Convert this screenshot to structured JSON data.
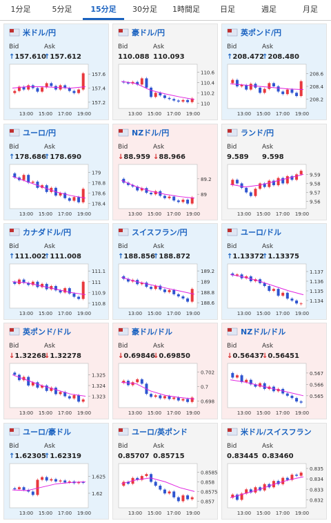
{
  "tabs": [
    "1分足",
    "5分足",
    "15分足",
    "30分足",
    "1時間足",
    "日足",
    "週足",
    "月足"
  ],
  "active_tab": 2,
  "labels": {
    "bid": "Bid",
    "ask": "Ask"
  },
  "arrows": {
    "up": "↑",
    "down": "↓"
  },
  "time_labels": [
    "13:00",
    "15:00",
    "17:00",
    "19:00"
  ],
  "colors": {
    "up_card": "#e6f2fb",
    "down_card": "#fcecec",
    "flat_card": "#f4f4f4",
    "rise": "#e8383d",
    "fall": "#2f55d0",
    "ma": "#e020e0",
    "arrow_up": "#1a62c0",
    "arrow_down": "#d42a2a"
  },
  "cards": [
    {
      "name": "米ドル/円",
      "bid": "157.610",
      "ask": "157.612",
      "trend": "up",
      "chart": {
        "ylim": [
          157.15,
          157.7
        ],
        "yticks": [
          157.2,
          157.4,
          157.6
        ],
        "values": [
          157.33,
          157.36,
          157.42,
          157.38,
          157.44,
          157.4,
          157.35,
          157.41,
          157.47,
          157.43,
          157.38,
          157.44,
          157.4,
          157.36,
          157.33,
          157.38,
          157.61
        ],
        "ma": [
          157.4,
          157.42,
          157.42,
          157.41,
          157.4,
          157.42
        ]
      }
    },
    {
      "name": "豪ドル/円",
      "bid": "110.088",
      "ask": "110.093",
      "trend": "flat",
      "chart": {
        "ylim": [
          109.95,
          110.7
        ],
        "yticks": [
          110,
          110.2,
          110.4,
          110.6
        ],
        "values": [
          110.42,
          110.4,
          110.38,
          110.41,
          110.36,
          110.48,
          110.3,
          110.12,
          110.2,
          110.15,
          110.1,
          110.08,
          110.05,
          110.03,
          110.06,
          110.02,
          110.09
        ],
        "ma": [
          110.42,
          110.38,
          110.25,
          110.18,
          110.12,
          110.07
        ]
      }
    },
    {
      "name": "英ポンド/円",
      "bid": "208.472",
      "ask": "208.480",
      "trend": "up",
      "chart": {
        "ylim": [
          208.1,
          208.7
        ],
        "yticks": [
          208.2,
          208.4,
          208.6
        ],
        "values": [
          208.45,
          208.5,
          208.4,
          208.42,
          208.35,
          208.44,
          208.38,
          208.3,
          208.36,
          208.45,
          208.4,
          208.32,
          208.28,
          208.35,
          208.3,
          208.25,
          208.48
        ],
        "ma": [
          208.44,
          208.42,
          208.4,
          208.38,
          208.36,
          208.35
        ]
      }
    },
    {
      "name": "ユーロ/円",
      "bid": "178.686",
      "ask": "178.690",
      "trend": "up",
      "chart": {
        "ylim": [
          178.35,
          179.1
        ],
        "yticks": [
          178.4,
          178.6,
          178.8,
          179
        ],
        "values": [
          178.98,
          178.9,
          178.85,
          178.95,
          178.8,
          178.82,
          178.7,
          178.75,
          178.62,
          178.7,
          178.55,
          178.6,
          178.5,
          178.45,
          178.52,
          178.42,
          178.68
        ],
        "ma": [
          178.92,
          178.82,
          178.72,
          178.62,
          178.55,
          178.5
        ]
      }
    },
    {
      "name": "NZドル/円",
      "bid": "88.959",
      "ask": "88.966",
      "trend": "down",
      "chart": {
        "ylim": [
          88.85,
          89.35
        ],
        "yticks": [
          89,
          89.2
        ],
        "values": [
          89.2,
          89.15,
          89.12,
          89.1,
          89.05,
          89.08,
          89.02,
          89.0,
          89.04,
          88.98,
          88.95,
          88.97,
          88.92,
          88.9,
          88.93,
          88.88,
          88.96
        ],
        "ma": [
          89.18,
          89.1,
          89.04,
          89.0,
          88.97,
          88.95
        ]
      }
    },
    {
      "name": "ランド/円",
      "bid": "9.589",
      "ask": "9.598",
      "trend": "flat",
      "chart": {
        "ylim": [
          9.555,
          9.598
        ],
        "yticks": [
          9.56,
          9.57,
          9.58,
          9.59
        ],
        "values": [
          9.578,
          9.584,
          9.58,
          9.575,
          9.57,
          9.566,
          9.574,
          9.58,
          9.576,
          9.583,
          9.578,
          9.586,
          9.58,
          9.588,
          9.584,
          9.59,
          9.594
        ],
        "ma": [
          9.579,
          9.576,
          9.578,
          9.582,
          9.586,
          9.59
        ]
      }
    },
    {
      "name": "カナダドル/円",
      "bid": "111.002",
      "ask": "111.008",
      "trend": "up",
      "chart": {
        "ylim": [
          110.78,
          111.14
        ],
        "yticks": [
          110.8,
          110.9,
          111,
          111.1
        ],
        "values": [
          111.0,
          110.98,
          111.02,
          110.99,
          110.97,
          111.0,
          110.95,
          110.98,
          110.93,
          110.96,
          110.92,
          110.9,
          110.94,
          110.89,
          110.86,
          110.84,
          111.0
        ],
        "ma": [
          111.0,
          110.99,
          110.96,
          110.93,
          110.9,
          110.88
        ]
      }
    },
    {
      "name": "スイスフラン/円",
      "bid": "188.856",
      "ask": "188.872",
      "trend": "up",
      "chart": {
        "ylim": [
          188.55,
          189.28
        ],
        "yticks": [
          188.6,
          188.8,
          189,
          189.2
        ],
        "values": [
          189.1,
          189.05,
          189.0,
          189.03,
          188.95,
          188.98,
          188.9,
          188.86,
          188.92,
          188.85,
          188.8,
          188.84,
          188.76,
          188.72,
          188.68,
          188.62,
          188.86
        ],
        "ma": [
          189.08,
          189.0,
          188.94,
          188.88,
          188.82,
          188.76
        ]
      }
    },
    {
      "name": "ユーロ/ドル",
      "bid": "1.13372",
      "ask": "1.13375",
      "trend": "up",
      "chart": {
        "ylim": [
          1.1335,
          1.1375
        ],
        "yticks": [
          1.134,
          1.135,
          1.136,
          1.137
        ],
        "values": [
          1.1368,
          1.1366,
          1.1367,
          1.1363,
          1.1365,
          1.136,
          1.1362,
          1.1358,
          1.1355,
          1.135,
          1.1352,
          1.1345,
          1.1348,
          1.1342,
          1.134,
          1.1337,
          1.1337
        ],
        "ma": [
          1.1367,
          1.1364,
          1.136,
          1.1355,
          1.135,
          1.1346
        ]
      }
    },
    {
      "name": "英ポンド/ドル",
      "bid": "1.32268",
      "ask": "1.32278",
      "trend": "down",
      "chart": {
        "ylim": [
          1.3222,
          1.3258
        ],
        "yticks": [
          1.323,
          1.324,
          1.325
        ],
        "values": [
          1.3252,
          1.325,
          1.3245,
          1.3248,
          1.324,
          1.3243,
          1.3238,
          1.324,
          1.3235,
          1.3238,
          1.3232,
          1.3234,
          1.323,
          1.3228,
          1.3231,
          1.3225,
          1.3227
        ],
        "ma": [
          1.325,
          1.3245,
          1.324,
          1.3236,
          1.3232,
          1.323
        ]
      }
    },
    {
      "name": "豪ドル/ドル",
      "bid": "0.69846",
      "ask": "0.69850",
      "trend": "down",
      "chart": {
        "ylim": [
          0.6975,
          0.7028
        ],
        "yticks": [
          0.698,
          0.7,
          0.702
        ],
        "values": [
          0.7005,
          0.7008,
          0.7002,
          0.7006,
          0.701,
          0.7004,
          0.699,
          0.6986,
          0.6988,
          0.6984,
          0.6987,
          0.6983,
          0.6985,
          0.6981,
          0.6983,
          0.6979,
          0.6985
        ],
        "ma": [
          0.7006,
          0.7004,
          0.6994,
          0.6988,
          0.6985,
          0.6983
        ]
      }
    },
    {
      "name": "NZドル/ドル",
      "bid": "0.56437",
      "ask": "0.56451",
      "trend": "down",
      "chart": {
        "ylim": [
          0.5642,
          0.5676
        ],
        "yticks": [
          0.565,
          0.566,
          0.567
        ],
        "values": [
          0.567,
          0.5666,
          0.5668,
          0.5662,
          0.5664,
          0.566,
          0.5658,
          0.5661,
          0.5656,
          0.5658,
          0.5654,
          0.5656,
          0.5652,
          0.565,
          0.5648,
          0.5645,
          0.5644
        ],
        "ma": [
          0.5664,
          0.5662,
          0.5659,
          0.5656,
          0.5653,
          0.565
        ]
      }
    },
    {
      "name": "ユーロ/豪ドル",
      "bid": "1.62305",
      "ask": "1.62319",
      "trend": "up",
      "chart": {
        "ylim": [
          1.6165,
          1.628
        ],
        "yticks": [
          1.62,
          1.625
        ],
        "values": [
          1.6215,
          1.6212,
          1.6218,
          1.621,
          1.6205,
          1.6195,
          1.624,
          1.6248,
          1.6238,
          1.6242,
          1.6235,
          1.6238,
          1.6232,
          1.6235,
          1.623,
          1.6233,
          1.6231
        ],
        "ma": [
          1.621,
          1.6208,
          1.6218,
          1.6228,
          1.6232,
          1.6234
        ]
      }
    },
    {
      "name": "ユーロ/英ポンド",
      "bid": "0.85707",
      "ask": "0.85715",
      "trend": "flat",
      "chart": {
        "ylim": [
          0.8568,
          0.8588
        ],
        "yticks": [
          0.857,
          0.8575,
          0.858,
          0.8585
        ],
        "values": [
          0.8578,
          0.858,
          0.8579,
          0.8582,
          0.8581,
          0.8583,
          0.8584,
          0.858,
          0.8578,
          0.8576,
          0.8574,
          0.8575,
          0.8572,
          0.857,
          0.8573,
          0.8571,
          0.8572
        ],
        "ma": [
          0.8579,
          0.8581,
          0.8582,
          0.858,
          0.8577,
          0.8575
        ]
      }
    },
    {
      "name": "米ドル/スイスフラン",
      "bid": "0.83445",
      "ask": "0.83460",
      "trend": "flat",
      "chart": {
        "ylim": [
          0.8315,
          0.8352
        ],
        "yticks": [
          0.832,
          0.833,
          0.834,
          0.835
        ],
        "values": [
          0.8322,
          0.8325,
          0.832,
          0.8326,
          0.833,
          0.8327,
          0.8332,
          0.8329,
          0.8335,
          0.8332,
          0.8338,
          0.8335,
          0.8341,
          0.8339,
          0.8344,
          0.8343,
          0.8346
        ],
        "ma": [
          0.8322,
          0.8326,
          0.833,
          0.8335,
          0.8339,
          0.8342
        ]
      }
    }
  ]
}
